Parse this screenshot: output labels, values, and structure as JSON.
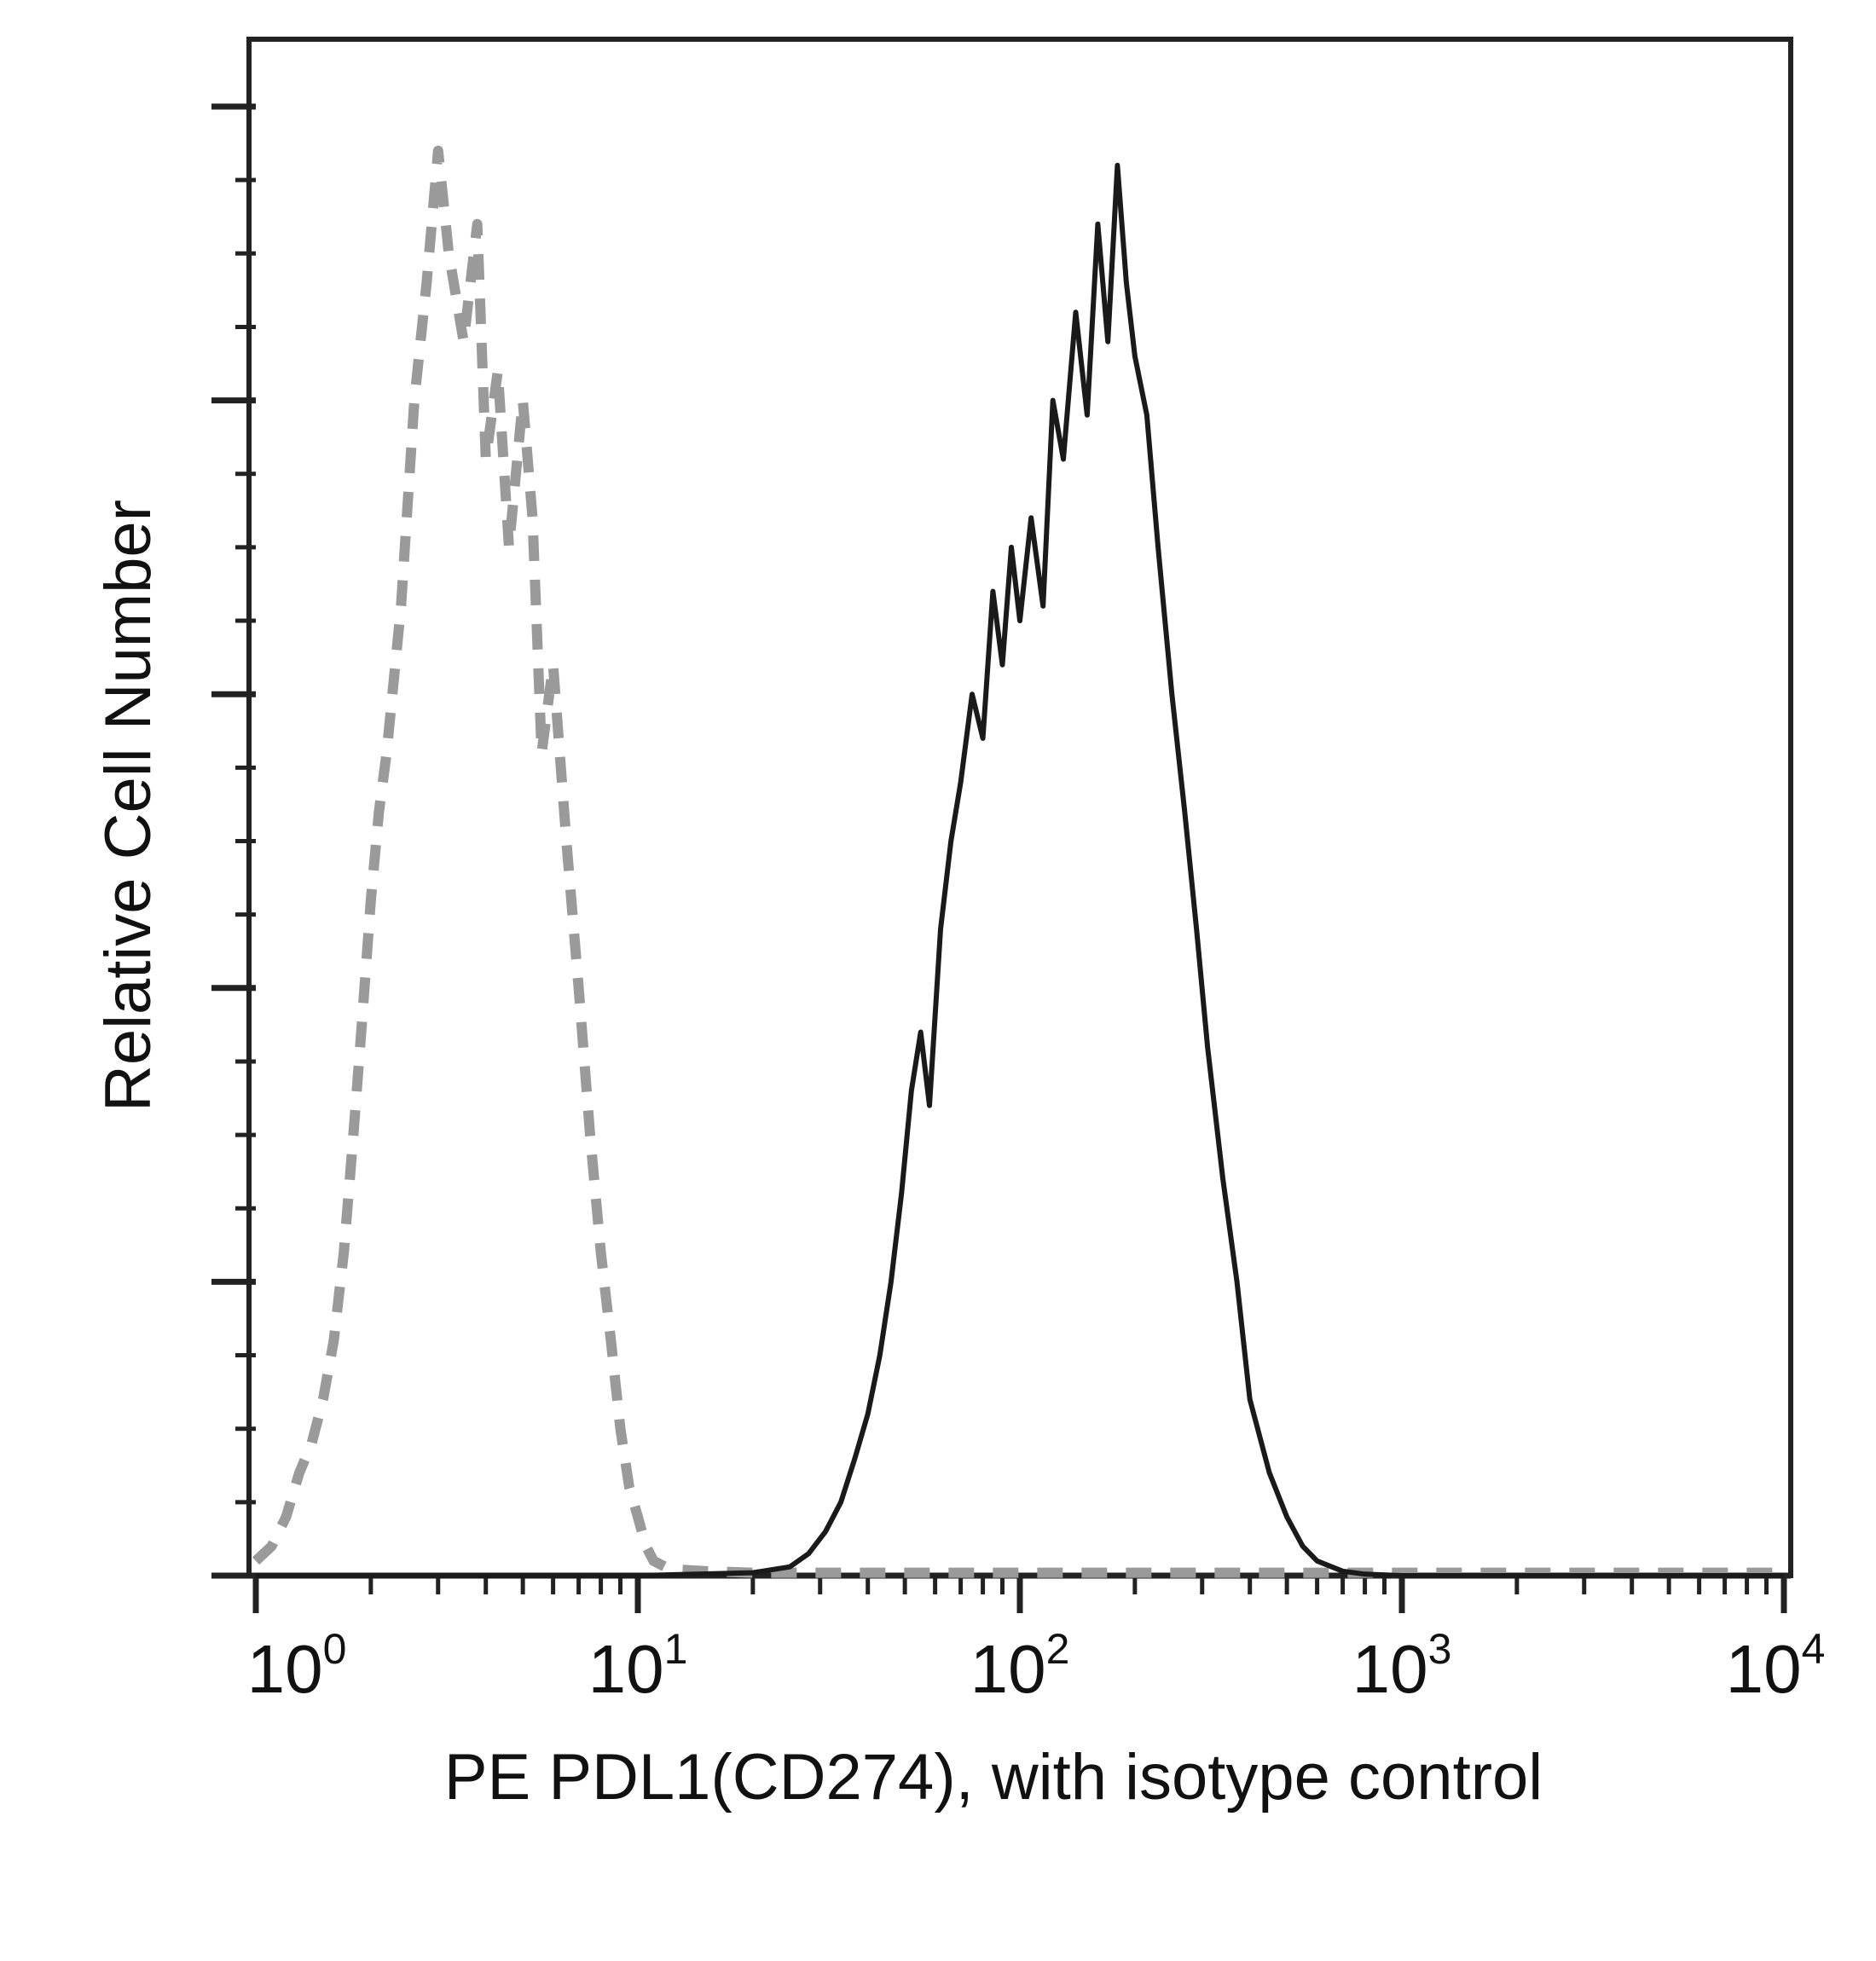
{
  "chart_data": {
    "type": "line",
    "title": "",
    "xlabel": "PE PDL1(CD274), with isotype control",
    "ylabel": "Relative Cell Number",
    "x_scale": "log",
    "xlim": [
      1,
      10000
    ],
    "ylim": [
      0,
      1
    ],
    "x_tick_labels": [
      {
        "base": "10",
        "exp": "0",
        "value": 1
      },
      {
        "base": "10",
        "exp": "1",
        "value": 10
      },
      {
        "base": "10",
        "exp": "2",
        "value": 100
      },
      {
        "base": "10",
        "exp": "3",
        "value": 1000
      },
      {
        "base": "10",
        "exp": "4",
        "value": 10000
      }
    ],
    "y_tick_labels_shown": false,
    "legend": "none",
    "series": [
      {
        "style": "dashed",
        "color": "#9a9a9a",
        "x": [
          1.0,
          1.1,
          1.2,
          1.3,
          1.4,
          1.5,
          1.6,
          1.7,
          1.8,
          1.9,
          2.0,
          2.1,
          2.2,
          2.4,
          2.6,
          2.8,
          3.0,
          3.2,
          3.5,
          3.8,
          4.0,
          4.3,
          4.6,
          5.0,
          5.3,
          5.6,
          6.0,
          6.5,
          7.0,
          7.5,
          8.0,
          8.5,
          9.0,
          9.5,
          10.0,
          10.5,
          11.0,
          12.0,
          13.0,
          15.0,
          20.0,
          30.0,
          50.0,
          100.0,
          300.0,
          1000.0,
          10000.0
        ],
        "values": [
          0.01,
          0.02,
          0.04,
          0.07,
          0.09,
          0.12,
          0.16,
          0.22,
          0.3,
          0.38,
          0.46,
          0.52,
          0.56,
          0.66,
          0.8,
          0.88,
          0.97,
          0.9,
          0.84,
          0.92,
          0.76,
          0.82,
          0.7,
          0.8,
          0.72,
          0.56,
          0.62,
          0.5,
          0.4,
          0.3,
          0.22,
          0.16,
          0.1,
          0.06,
          0.04,
          0.02,
          0.01,
          0.005,
          0.004,
          0.003,
          0.002,
          0.002,
          0.002,
          0.002,
          0.002,
          0.002,
          0.002
        ]
      },
      {
        "style": "solid",
        "color": "#1a1a1a",
        "x": [
          1.0,
          10.0,
          20.0,
          25.0,
          28.0,
          31.0,
          34.0,
          37.0,
          40.0,
          43.0,
          46.0,
          49.0,
          52.0,
          55.0,
          58.0,
          62.0,
          66.0,
          70.0,
          75.0,
          80.0,
          85.0,
          90.0,
          95.0,
          100.0,
          107.0,
          115.0,
          122.0,
          130.0,
          140.0,
          150.0,
          160.0,
          170.0,
          180.0,
          190.0,
          200.0,
          215.0,
          230.0,
          250.0,
          270.0,
          290.0,
          310.0,
          340.0,
          370.0,
          400.0,
          450.0,
          500.0,
          550.0,
          600.0,
          700.0,
          800.0,
          1000.0,
          10000.0
        ],
        "values": [
          0.0,
          0.0,
          0.002,
          0.006,
          0.015,
          0.03,
          0.05,
          0.08,
          0.11,
          0.15,
          0.2,
          0.26,
          0.33,
          0.37,
          0.32,
          0.44,
          0.5,
          0.54,
          0.6,
          0.57,
          0.67,
          0.62,
          0.7,
          0.65,
          0.72,
          0.66,
          0.8,
          0.76,
          0.86,
          0.79,
          0.92,
          0.84,
          0.96,
          0.88,
          0.83,
          0.79,
          0.7,
          0.6,
          0.52,
          0.44,
          0.36,
          0.27,
          0.2,
          0.12,
          0.07,
          0.04,
          0.02,
          0.01,
          0.003,
          0.001,
          0.0,
          0.0
        ]
      }
    ]
  }
}
